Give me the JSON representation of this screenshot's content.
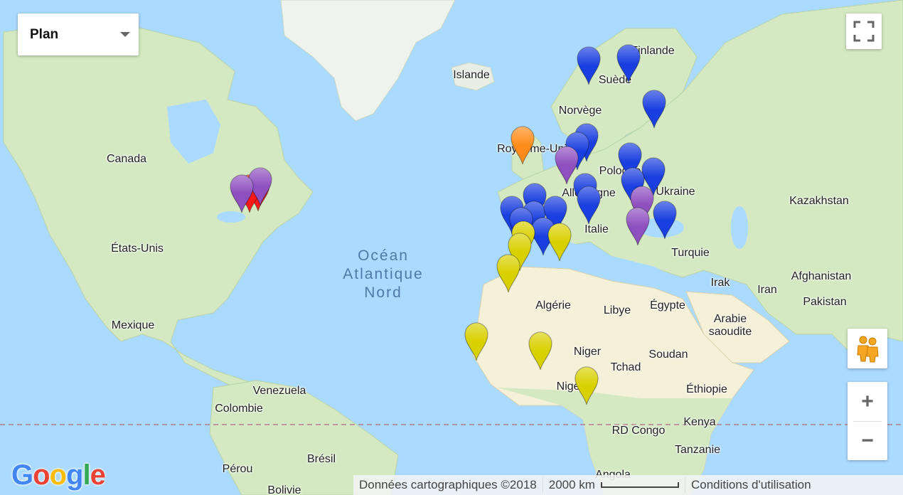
{
  "map_type": {
    "selected": "Plan"
  },
  "ocean": [
    "Océan",
    "Atlantique",
    "Nord"
  ],
  "labels": {
    "islande": "Islande",
    "finlande": "Finlande",
    "suede": "Suède",
    "norvege": "Norvège",
    "royaume_uni": "Royaume-Uni",
    "canada": "Canada",
    "pologne": "Pologne",
    "allemagne": "Allemagne",
    "ukraine": "Ukraine",
    "kazakhstan": "Kazakhstan",
    "italie": "Italie",
    "turquie": "Turquie",
    "etats_unis": "États-Unis",
    "afghanistan": "Afghanistan",
    "irak": "Irak",
    "iran": "Iran",
    "pakistan": "Pakistan",
    "algerie": "Algérie",
    "libye": "Libye",
    "egypte": "Égypte",
    "arabie": "Arabie saoudite",
    "mexique": "Mexique",
    "niger": "Niger",
    "soudan": "Soudan",
    "tchad": "Tchad",
    "venezuela": "Venezuela",
    "nigeria": "Nigeria",
    "ethiopie": "Éthiopie",
    "colombie": "Colombie",
    "rd_congo": "RD Congo",
    "kenya": "Kenya",
    "bresil": "Brésil",
    "tanzanie": "Tanzanie",
    "perou": "Pérou",
    "angola": "Angola",
    "bolivie": "Bolivie"
  },
  "attribution": {
    "data": "Données cartographiques ©2018",
    "scale": "2000 km",
    "terms": "Conditions d'utilisation"
  },
  "google_logo": "Google",
  "zoom": {
    "in": "+",
    "out": "−"
  },
  "colors": {
    "water": "#aadaff",
    "land": "#d4e9c2",
    "desert": "#f5f0d8",
    "marker_blue": "#1a3fe0",
    "marker_purple": "#8e4fbf",
    "marker_red": "#ff1a1a",
    "marker_orange": "#ff8c1a",
    "marker_yellow": "#d9d000"
  },
  "legend": {
    "marker_colors": [
      "blue",
      "purple",
      "red",
      "orange",
      "yellow"
    ],
    "marker_counts": {
      "blue": 24,
      "purple": 5,
      "red": 2,
      "orange": 1,
      "yellow": 8
    }
  }
}
